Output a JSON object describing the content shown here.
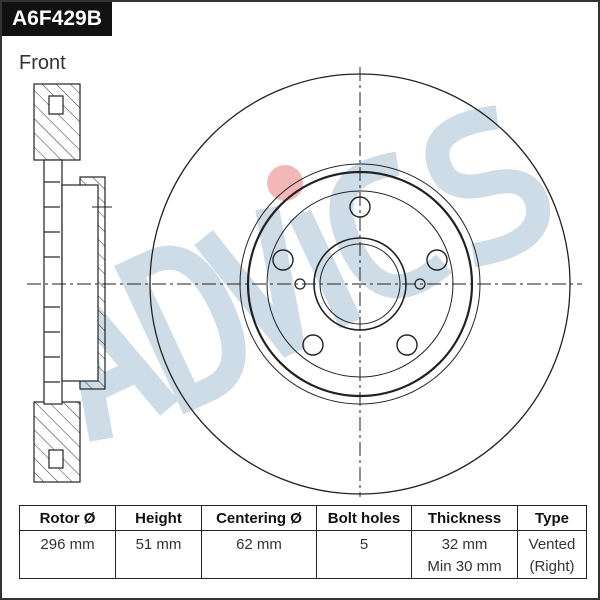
{
  "title": "A6F429B",
  "view_label": "Front",
  "watermark": "ADVICS",
  "colors": {
    "watermark": "#c9d9e6",
    "watermark_dot": "#f3b0b0",
    "title_bg": "#111111"
  },
  "table": {
    "headers": [
      "Rotor Ø",
      "Height",
      "Centering Ø",
      "Bolt holes",
      "Thickness",
      "Type"
    ],
    "values": [
      "296 mm",
      "51 mm",
      "62 mm",
      "5",
      "32 mm",
      "Vented"
    ],
    "values2": [
      "",
      "",
      "",
      "",
      "Min 30 mm",
      "(Right)"
    ]
  }
}
